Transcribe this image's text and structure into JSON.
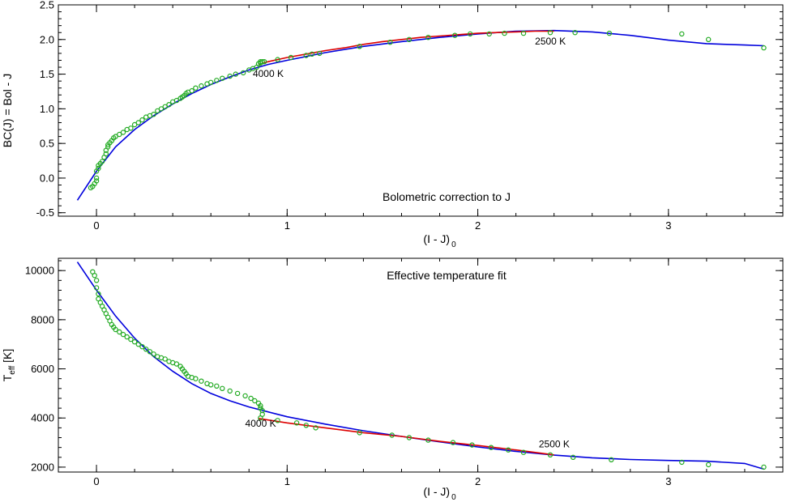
{
  "chart_data": [
    {
      "type": "scatter",
      "title": "Bolometric correction to J",
      "xlabel": "(I - J)",
      "xlabel_sub": "0",
      "ylabel": "BC(J) = Bol - J",
      "xlim": [
        -0.2,
        3.6
      ],
      "ylim": [
        -0.55,
        2.5
      ],
      "xticks": [
        {
          "v": 0,
          "label": "0"
        },
        {
          "v": 1,
          "label": "1"
        },
        {
          "v": 2,
          "label": "2"
        },
        {
          "v": 3,
          "label": "3"
        }
      ],
      "yticks": [
        {
          "v": -0.5,
          "label": "-0.5"
        },
        {
          "v": 0,
          "label": "0.0"
        },
        {
          "v": 0.5,
          "label": "0.5"
        },
        {
          "v": 1,
          "label": "1.0"
        },
        {
          "v": 1.5,
          "label": "1.5"
        },
        {
          "v": 2,
          "label": "2.0"
        },
        {
          "v": 2.5,
          "label": "2.5"
        }
      ],
      "annotations": [
        {
          "text": "4000 K",
          "x": 0.82,
          "y": 1.46
        },
        {
          "text": "2500 K",
          "x": 2.3,
          "y": 1.93
        }
      ],
      "colors": {
        "points": "#22aa22",
        "fit": "#0000dd",
        "fit_partial": "#dd0000"
      },
      "points": {
        "x": [
          -0.03,
          -0.02,
          -0.01,
          0.0,
          0.0,
          0.0,
          0.01,
          0.01,
          0.02,
          0.03,
          0.04,
          0.05,
          0.05,
          0.06,
          0.06,
          0.07,
          0.08,
          0.09,
          0.1,
          0.12,
          0.14,
          0.16,
          0.18,
          0.2,
          0.22,
          0.24,
          0.26,
          0.28,
          0.3,
          0.32,
          0.34,
          0.36,
          0.38,
          0.4,
          0.42,
          0.44,
          0.45,
          0.46,
          0.47,
          0.48,
          0.5,
          0.52,
          0.55,
          0.58,
          0.6,
          0.63,
          0.66,
          0.7,
          0.73,
          0.77,
          0.8,
          0.82,
          0.84,
          0.85,
          0.86,
          0.86,
          0.87,
          0.88,
          0.95,
          1.02,
          1.1,
          1.13,
          1.17,
          1.38,
          1.54,
          1.64,
          1.74,
          1.88,
          1.96,
          2.06,
          2.14,
          2.24,
          2.38,
          2.51,
          2.69,
          3.07,
          3.21,
          3.5
        ],
        "y": [
          -0.14,
          -0.12,
          -0.08,
          -0.04,
          0.0,
          0.1,
          0.14,
          0.18,
          0.21,
          0.24,
          0.3,
          0.35,
          0.4,
          0.45,
          0.48,
          0.51,
          0.54,
          0.58,
          0.6,
          0.63,
          0.66,
          0.7,
          0.72,
          0.77,
          0.8,
          0.84,
          0.88,
          0.9,
          0.92,
          0.97,
          1.0,
          1.03,
          1.06,
          1.1,
          1.12,
          1.15,
          1.17,
          1.19,
          1.22,
          1.24,
          1.26,
          1.3,
          1.33,
          1.36,
          1.38,
          1.41,
          1.44,
          1.47,
          1.5,
          1.52,
          1.56,
          1.58,
          1.6,
          1.65,
          1.66,
          1.68,
          1.68,
          1.68,
          1.71,
          1.74,
          1.77,
          1.79,
          1.8,
          1.9,
          1.96,
          2.0,
          2.03,
          2.06,
          2.08,
          2.08,
          2.09,
          2.09,
          2.1,
          2.1,
          2.09,
          2.08,
          2.0,
          1.88
        ]
      },
      "fit": {
        "x": [
          -0.1,
          0.0,
          0.1,
          0.2,
          0.3,
          0.4,
          0.5,
          0.6,
          0.7,
          0.8,
          0.9,
          1.0,
          1.2,
          1.4,
          1.6,
          1.8,
          2.0,
          2.2,
          2.4,
          2.6,
          2.8,
          3.0,
          3.2,
          3.4,
          3.5
        ],
        "y": [
          -0.32,
          0.1,
          0.45,
          0.7,
          0.9,
          1.07,
          1.22,
          1.35,
          1.46,
          1.56,
          1.64,
          1.7,
          1.81,
          1.9,
          1.97,
          2.03,
          2.08,
          2.12,
          2.13,
          2.11,
          2.06,
          1.99,
          1.94,
          1.92,
          1.91
        ]
      },
      "fit_partial": {
        "x": [
          0.85,
          0.9,
          1.0,
          1.1,
          1.2,
          1.3,
          1.4,
          1.5,
          1.6,
          1.7,
          1.8,
          1.9,
          2.0,
          2.1,
          2.2,
          2.3,
          2.4
        ],
        "y": [
          1.64,
          1.68,
          1.74,
          1.79,
          1.84,
          1.88,
          1.93,
          1.97,
          2.0,
          2.03,
          2.05,
          2.07,
          2.09,
          2.1,
          2.11,
          2.12,
          2.12
        ]
      }
    },
    {
      "type": "scatter",
      "title": "Effective temperature fit",
      "xlabel": "(I - J)",
      "xlabel_sub": "0",
      "ylabel": "T",
      "ylabel_sub": "eff",
      "ylabel_unit": " [K]",
      "xlim": [
        -0.2,
        3.6
      ],
      "ylim": [
        1800,
        10500
      ],
      "xticks": [
        {
          "v": 0,
          "label": "0"
        },
        {
          "v": 1,
          "label": "1"
        },
        {
          "v": 2,
          "label": "2"
        },
        {
          "v": 3,
          "label": "3"
        }
      ],
      "yticks": [
        {
          "v": 2000,
          "label": "2000"
        },
        {
          "v": 4000,
          "label": "4000"
        },
        {
          "v": 6000,
          "label": "6000"
        },
        {
          "v": 8000,
          "label": "8000"
        },
        {
          "v": 10000,
          "label": "10000"
        }
      ],
      "annotations": [
        {
          "text": "4000 K",
          "x": 0.78,
          "y": 3650
        },
        {
          "text": "2500 K",
          "x": 2.32,
          "y": 2810
        }
      ],
      "colors": {
        "points": "#22aa22",
        "fit": "#0000dd",
        "fit_partial": "#dd0000"
      },
      "points": {
        "x": [
          -0.02,
          -0.01,
          0.0,
          0.0,
          0.01,
          0.01,
          0.02,
          0.03,
          0.04,
          0.05,
          0.06,
          0.07,
          0.08,
          0.09,
          0.1,
          0.12,
          0.14,
          0.16,
          0.18,
          0.2,
          0.22,
          0.24,
          0.26,
          0.28,
          0.3,
          0.32,
          0.34,
          0.36,
          0.38,
          0.4,
          0.42,
          0.44,
          0.45,
          0.46,
          0.47,
          0.48,
          0.5,
          0.52,
          0.55,
          0.58,
          0.6,
          0.63,
          0.66,
          0.7,
          0.74,
          0.78,
          0.81,
          0.83,
          0.85,
          0.86,
          0.86,
          0.87,
          0.87,
          0.86,
          0.95,
          1.05,
          1.1,
          1.15,
          1.38,
          1.55,
          1.64,
          1.74,
          1.87,
          1.97,
          2.07,
          2.16,
          2.24,
          2.38,
          2.5,
          2.7,
          3.07,
          3.21,
          3.5
        ],
        "y": [
          9950,
          9800,
          9600,
          9300,
          9050,
          8850,
          8700,
          8550,
          8400,
          8250,
          8100,
          7950,
          7800,
          7700,
          7600,
          7500,
          7400,
          7300,
          7200,
          7100,
          7000,
          6900,
          6800,
          6700,
          6600,
          6500,
          6450,
          6400,
          6300,
          6250,
          6200,
          6100,
          6000,
          5900,
          5800,
          5700,
          5650,
          5600,
          5500,
          5400,
          5350,
          5300,
          5200,
          5100,
          5000,
          4900,
          4800,
          4700,
          4600,
          4500,
          4400,
          4300,
          4150,
          4000,
          3900,
          3800,
          3700,
          3600,
          3400,
          3300,
          3200,
          3100,
          3000,
          2900,
          2800,
          2700,
          2600,
          2500,
          2400,
          2300,
          2200,
          2100,
          2000
        ]
      },
      "fit": {
        "x": [
          -0.1,
          0.0,
          0.1,
          0.2,
          0.3,
          0.4,
          0.5,
          0.6,
          0.7,
          0.8,
          0.9,
          1.0,
          1.2,
          1.4,
          1.6,
          1.8,
          2.0,
          2.2,
          2.4,
          2.6,
          2.8,
          3.0,
          3.2,
          3.4,
          3.5
        ],
        "y": [
          10350,
          9200,
          8150,
          7250,
          6500,
          5900,
          5400,
          5000,
          4700,
          4450,
          4250,
          4050,
          3750,
          3480,
          3250,
          3030,
          2820,
          2640,
          2490,
          2380,
          2310,
          2270,
          2240,
          2150,
          1920
        ]
      },
      "fit_partial": {
        "x": [
          0.85,
          0.9,
          1.0,
          1.2,
          1.4,
          1.6,
          1.8,
          2.0,
          2.2,
          2.4
        ],
        "y": [
          3980,
          3920,
          3800,
          3600,
          3400,
          3250,
          3050,
          2880,
          2700,
          2500
        ]
      }
    }
  ]
}
